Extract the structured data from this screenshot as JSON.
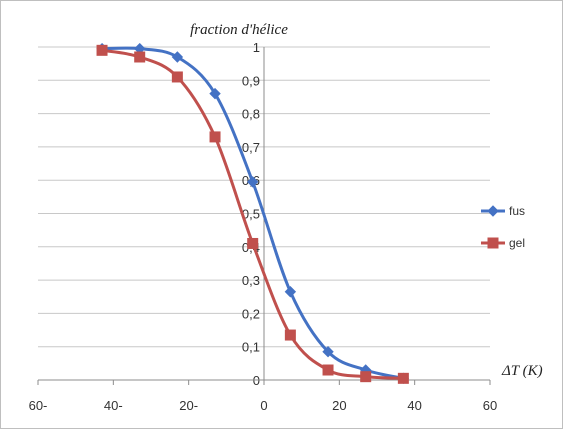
{
  "chart_data": {
    "type": "line",
    "title": "fraction d'hélice",
    "xlabel": "ΔT (K)",
    "ylabel": "",
    "xlim": [
      -60,
      60
    ],
    "ylim": [
      0,
      1
    ],
    "x_tick_labels": [
      "60-",
      "40-",
      "20-",
      "0",
      "20",
      "40",
      "60"
    ],
    "y_tick_labels": [
      "0",
      "0,1",
      "0,2",
      "0,3",
      "0,4",
      "0,5",
      "0,6",
      "0,7",
      "0,8",
      "0,9",
      "1"
    ],
    "grid": true,
    "legend_position": "right",
    "smooth": true,
    "series": [
      {
        "name": "fus",
        "color": "#4472c4",
        "marker": "diamond",
        "points": [
          [
            -43,
            0.995
          ],
          [
            -33,
            0.995
          ],
          [
            -23,
            0.97
          ],
          [
            -13,
            0.86
          ],
          [
            -3,
            0.595
          ],
          [
            7,
            0.265
          ],
          [
            17,
            0.085
          ],
          [
            27,
            0.03
          ],
          [
            37,
            0.005
          ]
        ]
      },
      {
        "name": "gel",
        "color": "#c0504d",
        "marker": "square",
        "points": [
          [
            -43,
            0.99
          ],
          [
            -33,
            0.97
          ],
          [
            -23,
            0.91
          ],
          [
            -13,
            0.73
          ],
          [
            -3,
            0.41
          ],
          [
            7,
            0.135
          ],
          [
            17,
            0.03
          ],
          [
            27,
            0.01
          ],
          [
            37,
            0.005
          ]
        ]
      }
    ]
  }
}
